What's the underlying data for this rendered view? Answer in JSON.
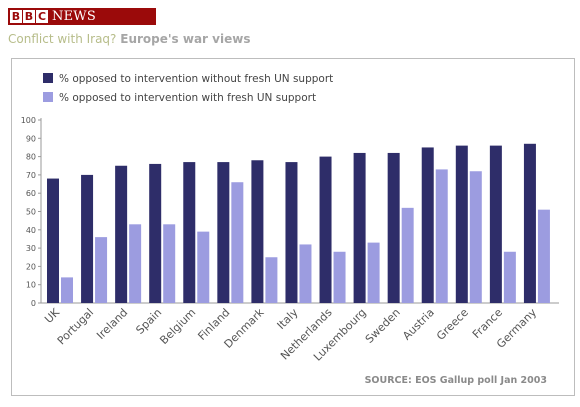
{
  "header": {
    "logo_letters": [
      "B",
      "B",
      "C"
    ],
    "logo_text": "NEWS",
    "headline_prefix": "Conflict with Iraq?",
    "headline_title": "Europe's war views"
  },
  "colors": {
    "series_1": "#2e2d69",
    "series_2": "#9c9ce0",
    "logo_red": "#9b0a0a"
  },
  "chart_data": {
    "type": "bar",
    "categories": [
      "UK",
      "Portugal",
      "Ireland",
      "Spain",
      "Belgium",
      "Finland",
      "Denmark",
      "Italy",
      "Netherlands",
      "Luxembourg",
      "Sweden",
      "Austria",
      "Greece",
      "France",
      "Germany"
    ],
    "series": [
      {
        "name": "% opposed to intervention without fresh UN support",
        "values": [
          68,
          70,
          75,
          76,
          77,
          77,
          78,
          77,
          80,
          82,
          82,
          85,
          86,
          86,
          87
        ]
      },
      {
        "name": "% opposed to intervention with fresh UN support",
        "values": [
          14,
          36,
          43,
          43,
          39,
          66,
          25,
          32,
          28,
          33,
          52,
          73,
          72,
          28,
          51
        ]
      }
    ],
    "ylim": [
      0,
      100
    ],
    "yticks": [
      0,
      10,
      20,
      30,
      40,
      50,
      60,
      70,
      80,
      90,
      100
    ],
    "grid": false,
    "legend_position": "top-left",
    "source": "SOURCE: EOS Gallup poll Jan 2003"
  }
}
